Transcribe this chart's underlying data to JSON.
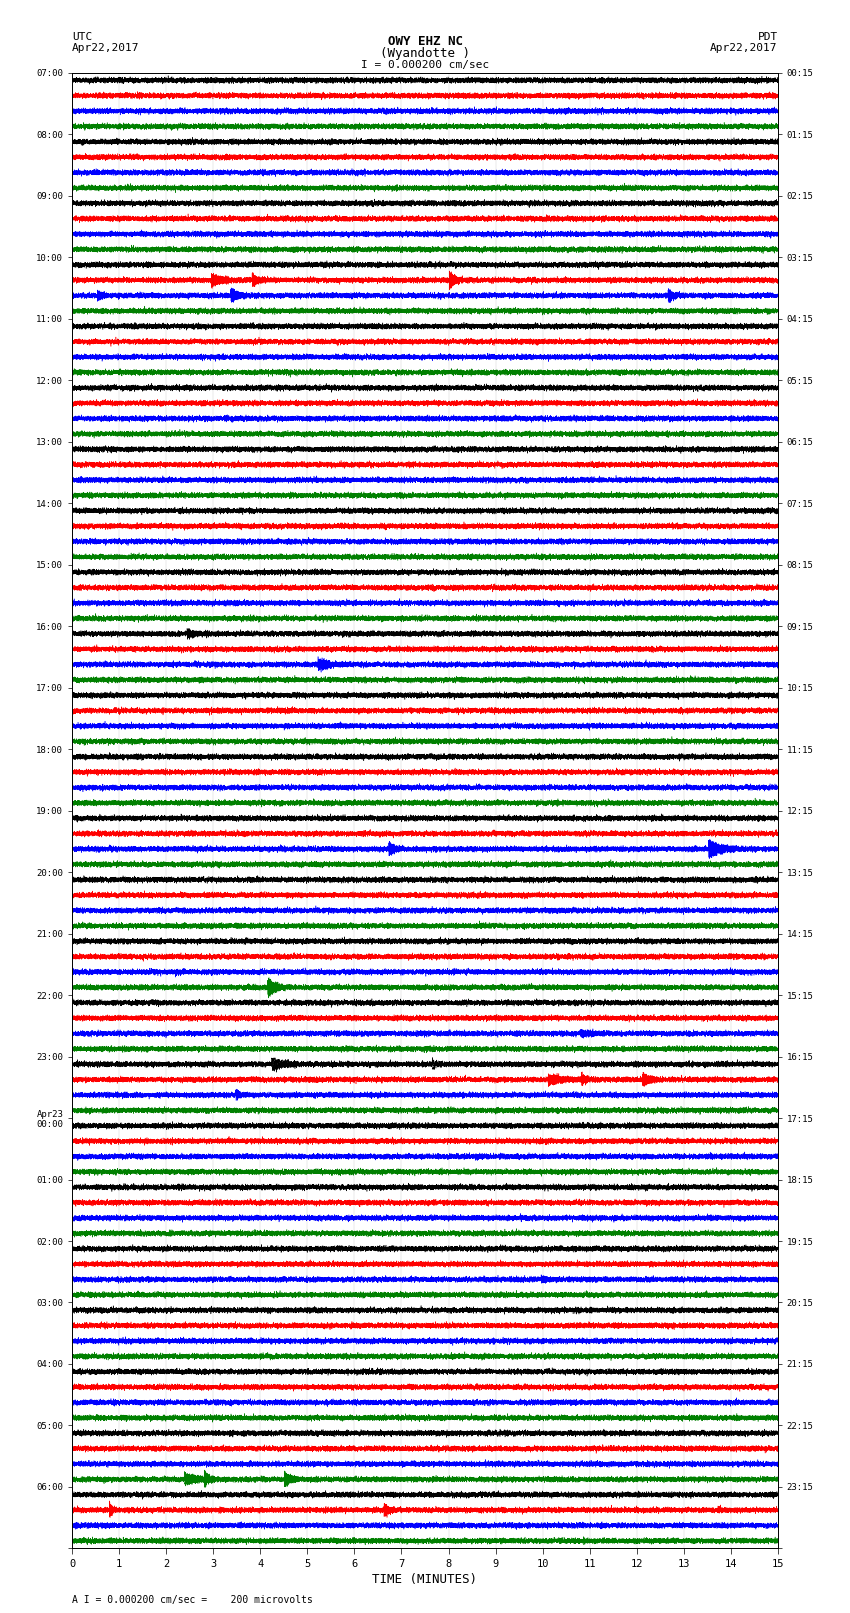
{
  "title_line1": "OWY EHZ NC",
  "title_line2": "(Wyandotte )",
  "scale_text": "I = 0.000200 cm/sec",
  "footer_text": "A I = 0.000200 cm/sec =    200 microvolts",
  "label_left": "UTC",
  "label_left2": "Apr22,2017",
  "label_right": "PDT",
  "label_right2": "Apr22,2017",
  "xlabel": "TIME (MINUTES)",
  "bg_color": "#ffffff",
  "trace_colors": [
    "black",
    "red",
    "blue",
    "green"
  ],
  "utc_times_labeled": [
    "07:00",
    "08:00",
    "09:00",
    "10:00",
    "11:00",
    "12:00",
    "13:00",
    "14:00",
    "15:00",
    "16:00",
    "17:00",
    "18:00",
    "19:00",
    "20:00",
    "21:00",
    "22:00",
    "23:00",
    "Apr23\n00:00",
    "01:00",
    "02:00",
    "03:00",
    "04:00",
    "05:00",
    "06:00"
  ],
  "pdt_times_labeled": [
    "00:15",
    "01:15",
    "02:15",
    "03:15",
    "04:15",
    "05:15",
    "06:15",
    "07:15",
    "08:15",
    "09:15",
    "10:15",
    "11:15",
    "12:15",
    "13:15",
    "14:15",
    "15:15",
    "16:15",
    "17:15",
    "18:15",
    "19:15",
    "20:15",
    "21:15",
    "22:15",
    "23:15"
  ],
  "n_hour_groups": 24,
  "traces_per_group": 4,
  "minutes": 15,
  "noise_level": 0.12,
  "sample_rate": 40
}
